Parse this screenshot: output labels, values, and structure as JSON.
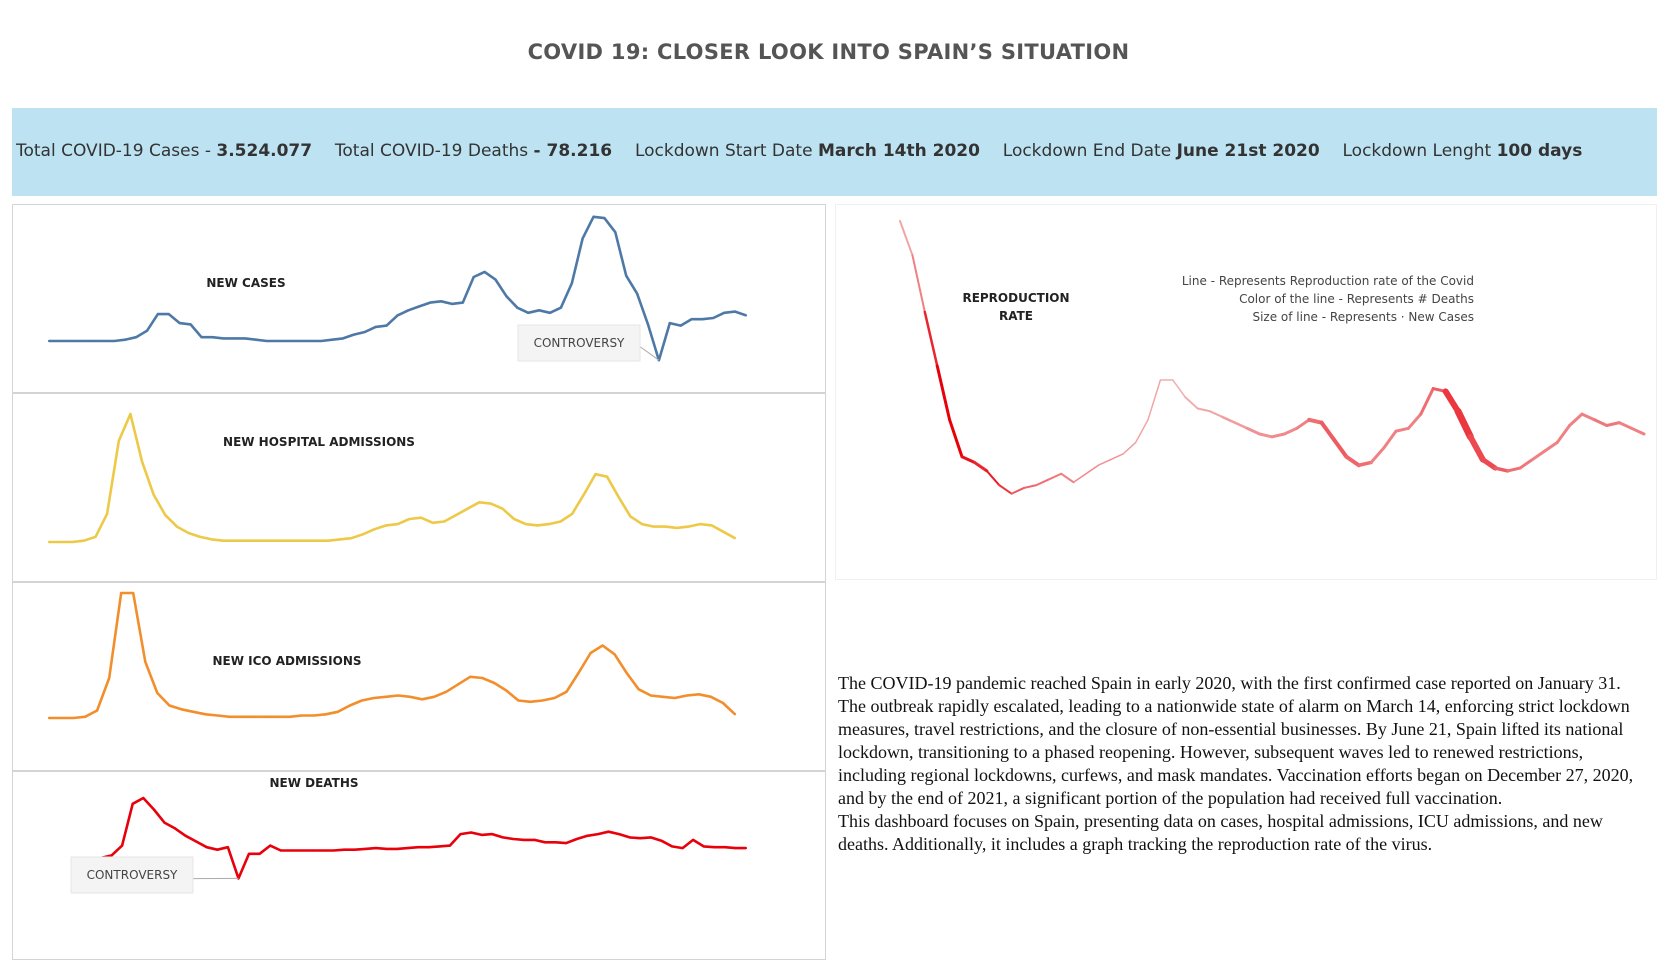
{
  "title": "COVID 19: CLOSER LOOK INTO SPAIN’S SITUATION",
  "kpis": {
    "cases_label": "Total COVID-19 Cases -",
    "cases_value": "3.524.077",
    "deaths_label": "Total COVID-19 Deaths",
    "deaths_value": "- 78.216",
    "lockdown_start_label": "Lockdown Start Date",
    "lockdown_start_value": "March 14th 2020",
    "lockdown_end_label": "Lockdown End Date",
    "lockdown_end_value": "June 21st 2020",
    "lockdown_length_label": "Lockdown Lenght",
    "lockdown_length_value": "100 days"
  },
  "description": {
    "paragraph_1": "The COVID-19 pandemic reached Spain in early 2020, with the first confirmed case reported on January 31. The outbreak rapidly escalated, leading to a nationwide state of alarm on March 14, enforcing strict lockdown measures, travel restrictions, and the closure of non-essential businesses. By June 21, Spain lifted its national lockdown, transitioning to a phased reopening. However, subsequent waves led to renewed restrictions, including regional lockdowns, curfews, and mask mandates. Vaccination efforts began on December 27, 2020, and by the end of 2021, a significant portion of the population had received full vaccination.",
    "paragraph_2": "This dashboard focuses on Spain, presenting data on cases, hospital admissions, ICU admissions, and new deaths. Additionally, it includes a graph tracking the reproduction rate of the virus."
  },
  "chart_data": [
    {
      "id": "new_cases",
      "type": "line",
      "title": "NEW CASES",
      "color": "#4e79a7",
      "ylim": [
        0,
        100
      ],
      "values": [
        0,
        0,
        0,
        0,
        0,
        0,
        0,
        1,
        3,
        8,
        21,
        21,
        14,
        13,
        3,
        3,
        2,
        2,
        2,
        1,
        0,
        0,
        0,
        0,
        0,
        0,
        1,
        2,
        5,
        7,
        11,
        12,
        20,
        24,
        27,
        30,
        31,
        29,
        30,
        50,
        54,
        48,
        35,
        26,
        22,
        24,
        22,
        26,
        45,
        80,
        97,
        96,
        85,
        51,
        37,
        13,
        -15,
        14,
        12,
        17,
        17,
        18,
        22,
        23,
        20
      ],
      "annotation": {
        "label": "CONTROVERSY",
        "point_index": 56
      }
    },
    {
      "id": "new_hospital_admissions",
      "type": "line",
      "title": "NEW HOSPITAL ADMISSIONS",
      "color": "#edc948",
      "ylim": [
        0,
        100
      ],
      "values": [
        0,
        0,
        0,
        1,
        4,
        22,
        79,
        100,
        63,
        37,
        21,
        12,
        7,
        4,
        2,
        1,
        1,
        1,
        1,
        1,
        1,
        1,
        1,
        1,
        1,
        2,
        3,
        6,
        10,
        13,
        14,
        18,
        19,
        15,
        16,
        21,
        26,
        31,
        30,
        26,
        18,
        14,
        13,
        14,
        16,
        22,
        37,
        53,
        51,
        35,
        20,
        14,
        12,
        12,
        11,
        12,
        14,
        13,
        8,
        3
      ],
      "annotation": null
    },
    {
      "id": "new_ico_admissions",
      "type": "line",
      "title": "NEW ICO ADMISSIONS",
      "color": "#f28e2b",
      "ylim": [
        0,
        100
      ],
      "values": [
        0,
        0,
        0,
        1,
        6,
        32,
        100,
        100,
        45,
        20,
        10,
        7,
        5,
        3,
        2,
        1,
        1,
        1,
        1,
        1,
        1,
        2,
        2,
        3,
        5,
        10,
        14,
        16,
        17,
        18,
        17,
        15,
        17,
        21,
        27,
        33,
        32,
        28,
        22,
        14,
        13,
        14,
        16,
        21,
        36,
        52,
        58,
        51,
        36,
        23,
        18,
        17,
        16,
        18,
        19,
        17,
        12,
        3
      ],
      "annotation": null
    },
    {
      "id": "new_deaths",
      "type": "line",
      "title": "NEW DEATHS",
      "color": "#e8000b",
      "ylim": [
        0,
        100
      ],
      "values": [
        5,
        8,
        20,
        71,
        78,
        64,
        48,
        41,
        32,
        25,
        18,
        15,
        18,
        -20,
        10,
        10,
        20,
        14,
        14,
        14,
        14,
        14,
        14,
        15,
        15,
        16,
        17,
        16,
        16,
        17,
        18,
        18,
        19,
        20,
        34,
        36,
        33,
        34,
        30,
        28,
        27,
        27,
        24,
        24,
        23,
        28,
        32,
        34,
        37,
        34,
        30,
        29,
        30,
        26,
        19,
        17,
        27,
        19,
        18,
        18,
        17,
        17
      ],
      "annotation": {
        "label": "CONTROVERSY",
        "point_index": 13
      }
    },
    {
      "id": "reproduction_rate",
      "type": "line",
      "title": "REPRODUCTION RATE",
      "legend": [
        "Line - Represents Reproduction rate of the Covid",
        "Color of the line - Represents # Deaths",
        "Size of line - Represents · New Cases"
      ],
      "color_range": [
        "#f2b7b7",
        "#e8000b"
      ],
      "ylim": [
        0,
        100
      ],
      "values": [
        100,
        88,
        68,
        49,
        30,
        17,
        15,
        12,
        7,
        4,
        6,
        7,
        9,
        11,
        8,
        11,
        14,
        16,
        18,
        22,
        30,
        44,
        44,
        38,
        34,
        33,
        31,
        29,
        27,
        25,
        24,
        25,
        27,
        30,
        29,
        23,
        17,
        14,
        15,
        20,
        26,
        27,
        32,
        41,
        40,
        33,
        24,
        16,
        13,
        12,
        13,
        16,
        19,
        22,
        28,
        32,
        30,
        28,
        29,
        27,
        25
      ],
      "intensity": [
        0.1,
        0.3,
        0.8,
        1.0,
        1.0,
        0.9,
        0.8,
        0.85,
        0.7,
        0.5,
        0.45,
        0.4,
        0.35,
        0.3,
        0.25,
        0.25,
        0.2,
        0.2,
        0.15,
        0.1,
        0.1,
        0.05,
        0.05,
        0.05,
        0.1,
        0.1,
        0.15,
        0.15,
        0.2,
        0.2,
        0.25,
        0.25,
        0.3,
        0.4,
        0.5,
        0.5,
        0.45,
        0.4,
        0.3,
        0.3,
        0.3,
        0.3,
        0.4,
        0.5,
        0.7,
        0.7,
        0.6,
        0.6,
        0.5,
        0.4,
        0.35,
        0.3,
        0.3,
        0.3,
        0.3,
        0.3,
        0.35,
        0.35,
        0.3,
        0.3,
        0.3
      ],
      "width": [
        2,
        2,
        2.5,
        3,
        3,
        3,
        3,
        2,
        2,
        2,
        2,
        2,
        2,
        2,
        1.5,
        1.5,
        1.5,
        1.5,
        1.5,
        1.5,
        1.5,
        1.5,
        1.5,
        2,
        2,
        2,
        2.5,
        2.5,
        3,
        3,
        3,
        3,
        3,
        4,
        4,
        4,
        4,
        3.5,
        3,
        3,
        3,
        3,
        3,
        3,
        6,
        7,
        6,
        5,
        3.5,
        3,
        3,
        3,
        3,
        3,
        3,
        3,
        3,
        3,
        3,
        3,
        3
      ]
    }
  ]
}
